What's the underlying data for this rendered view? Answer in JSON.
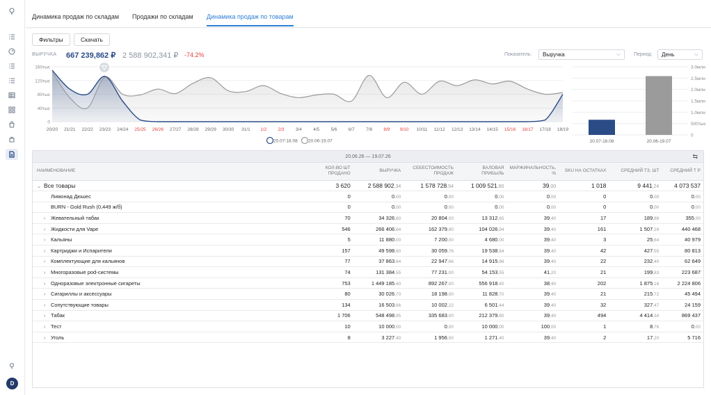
{
  "tabs": [
    {
      "label": "Динамика продаж по складам",
      "active": false
    },
    {
      "label": "Продажи по складам",
      "active": false
    },
    {
      "label": "Динамика продаж по товарам",
      "active": true
    }
  ],
  "toolbar": {
    "filters_label": "Фильтры",
    "download_label": "Скачать"
  },
  "kpi": {
    "label": "ВЫРУЧКА",
    "current": "667 239,862 ₽",
    "previous": "2 588 902,341 ₽",
    "delta": "-74.2%"
  },
  "selectors": {
    "indicator_label": "Показатель:",
    "indicator_value": "Выручка",
    "period_label": "Период:",
    "period_value": "День"
  },
  "legend": {
    "current": "20.07-18.08",
    "previous": "20.06-19.07"
  },
  "colors": {
    "current": "#2a4b86",
    "previous": "#9a9a9a",
    "weekend": "#e0403b",
    "accent": "#2f7fd6"
  },
  "chart_data": [
    {
      "type": "area",
      "y_ticks": [
        "160тыс",
        "120тыс",
        "80тыс",
        "40тыс",
        "0"
      ],
      "ylim": [
        0,
        160000
      ],
      "x": [
        "20/20",
        "21/21",
        "22/22",
        "23/23",
        "24/24",
        "25/25",
        "26/26",
        "27/27",
        "28/28",
        "29/29",
        "30/30",
        "31/1",
        "1/2",
        "2/3",
        "3/4",
        "4/5",
        "5/6",
        "6/7",
        "7/8",
        "8/9",
        "9/10",
        "10/11",
        "11/12",
        "12/13",
        "13/14",
        "14/15",
        "15/16",
        "16/17",
        "17/18",
        "18/19"
      ],
      "weekend_x": [
        "25/25",
        "26/26",
        "1/2",
        "2/3",
        "8/9",
        "9/10",
        "15/16",
        "16/17"
      ],
      "series": [
        {
          "name": "20.07-18.08",
          "values": [
            150000,
            95000,
            80000,
            132000,
            60000,
            5000,
            0,
            0,
            0,
            0,
            0,
            0,
            0,
            0,
            0,
            0,
            0,
            0,
            0,
            0,
            0,
            0,
            0,
            0,
            0,
            0,
            0,
            0,
            5000,
            80000
          ]
        },
        {
          "name": "20.06-19.07",
          "values": [
            145000,
            70000,
            40000,
            130000,
            80000,
            78000,
            95000,
            82000,
            112000,
            128000,
            90000,
            88000,
            105000,
            82000,
            70000,
            78000,
            80000,
            60000,
            135000,
            70000,
            115000,
            80000,
            118000,
            105000,
            122000,
            110000,
            118000,
            95000,
            80000,
            85000
          ]
        }
      ]
    },
    {
      "type": "bar",
      "y_ticks": [
        "3.0млн",
        "2.5млн",
        "2.0млн",
        "1.5млн",
        "1.0млн",
        "500тыс",
        "0"
      ],
      "ylim": [
        0,
        3000000
      ],
      "categories": [
        "20.07-18.08",
        "20.06-19.07"
      ],
      "values": [
        667239.862,
        2588902.341
      ]
    }
  ],
  "table": {
    "period": "20.06.26 — 19.07.26",
    "columns": [
      "НАИМЕНОВАНИЕ",
      "КОЛ-ВО ШТ ПРОДАНО",
      "ВЫРУЧКА",
      "СЕБЕСТОИМОСТЬ ПРОДАЖ",
      "ВАЛОВАЯ ПРИБЫЛЬ",
      "МАРЖИНАЛЬНОСТЬ, %",
      "SKU НА ОСТАТКАХ",
      "СРЕДНИЙ ТЗ, ШТ",
      "СРЕДНИЙ Т Р"
    ],
    "rows": [
      {
        "name": "Все товары",
        "level": 0,
        "caret": "⌄",
        "cells": [
          [
            "3 620",
            ""
          ],
          [
            "2 588 902",
            ",34"
          ],
          [
            "1 578 728",
            ",54"
          ],
          [
            "1 009 521",
            ",80"
          ],
          [
            "39",
            ",00"
          ],
          [
            "1 018",
            ""
          ],
          [
            "9 441",
            ",24"
          ],
          [
            "4 073 537",
            ""
          ]
        ]
      },
      {
        "name": "Лимонад Дюшес",
        "level": 2,
        "caret": "",
        "cells": [
          [
            "0",
            ""
          ],
          [
            "0",
            ",00"
          ],
          [
            "0",
            ",00"
          ],
          [
            "0",
            ",00"
          ],
          [
            "0",
            ",00"
          ],
          [
            "0",
            ""
          ],
          [
            "0",
            ",00"
          ],
          [
            "0",
            ",00"
          ]
        ]
      },
      {
        "name": "BURN - Gold Rush (0,449 ж/б)",
        "level": 2,
        "caret": "",
        "cells": [
          [
            "0",
            ""
          ],
          [
            "0",
            ",00"
          ],
          [
            "0",
            ",00"
          ],
          [
            "0",
            ",00"
          ],
          [
            "0",
            ",00"
          ],
          [
            "0",
            ""
          ],
          [
            "0",
            ",00"
          ],
          [
            "0",
            ",00"
          ]
        ]
      },
      {
        "name": "Жевательный табак",
        "level": 1,
        "caret": "›",
        "cells": [
          [
            "70",
            ""
          ],
          [
            "34 326",
            ",60"
          ],
          [
            "20 804",
            ",00"
          ],
          [
            "13 312",
            ",65"
          ],
          [
            "39",
            ",40"
          ],
          [
            "17",
            ""
          ],
          [
            "189",
            ",88"
          ],
          [
            "355",
            ",00"
          ]
        ]
      },
      {
        "name": "Жидкости для Vape",
        "level": 1,
        "caret": "›",
        "cells": [
          [
            "546",
            ""
          ],
          [
            "266 406",
            ",84"
          ],
          [
            "162 379",
            ",90"
          ],
          [
            "104 026",
            ",94"
          ],
          [
            "39",
            ",40"
          ],
          [
            "161",
            ""
          ],
          [
            "1 507",
            ",29"
          ],
          [
            "440 468",
            ""
          ]
        ]
      },
      {
        "name": "Кальяны",
        "level": 1,
        "caret": "›",
        "cells": [
          [
            "5",
            ""
          ],
          [
            "11 880",
            ",00"
          ],
          [
            "7 200",
            ",00"
          ],
          [
            "4 680",
            ",00"
          ],
          [
            "39",
            ",40"
          ],
          [
            "3",
            ""
          ],
          [
            "25",
            ",64"
          ],
          [
            "40 979",
            ""
          ]
        ]
      },
      {
        "name": "Картриджи и Испарители",
        "level": 1,
        "caret": "›",
        "cells": [
          [
            "157",
            ""
          ],
          [
            "49 598",
            ",60"
          ],
          [
            "30 059",
            ",76"
          ],
          [
            "19 538",
            ",84"
          ],
          [
            "39",
            ",40"
          ],
          [
            "42",
            ""
          ],
          [
            "427",
            ",55"
          ],
          [
            "80 813",
            ""
          ]
        ]
      },
      {
        "name": "Комплектующие для кальянов",
        "level": 1,
        "caret": "›",
        "cells": [
          [
            "77",
            ""
          ],
          [
            "37 863",
            ",64"
          ],
          [
            "22 947",
            ",66"
          ],
          [
            "14 915",
            ",98"
          ],
          [
            "39",
            ",40"
          ],
          [
            "22",
            ""
          ],
          [
            "232",
            ",40"
          ],
          [
            "62 649",
            ""
          ]
        ]
      },
      {
        "name": "Многоразовые pod-системы",
        "level": 1,
        "caret": "›",
        "cells": [
          [
            "74",
            ""
          ],
          [
            "131 384",
            ",55"
          ],
          [
            "77 231",
            ",00"
          ],
          [
            "54 153",
            ",55"
          ],
          [
            "41",
            ",20"
          ],
          [
            "21",
            ""
          ],
          [
            "199",
            ",83"
          ],
          [
            "223 687",
            ""
          ]
        ]
      },
      {
        "name": "Одноразовые электронные сигареты",
        "level": 1,
        "caret": "›",
        "cells": [
          [
            "753",
            ""
          ],
          [
            "1 449 185",
            ",40"
          ],
          [
            "892 267",
            ",00"
          ],
          [
            "556 918",
            ",40"
          ],
          [
            "38",
            ",40"
          ],
          [
            "202",
            ""
          ],
          [
            "1 875",
            ",16"
          ],
          [
            "2 224 806",
            ""
          ]
        ]
      },
      {
        "name": "Сигариллы и аксессуары",
        "level": 1,
        "caret": "›",
        "cells": [
          [
            "80",
            ""
          ],
          [
            "30 026",
            ",70"
          ],
          [
            "18 198",
            ",00"
          ],
          [
            "11 828",
            ",70"
          ],
          [
            "39",
            ",40"
          ],
          [
            "21",
            ""
          ],
          [
            "215",
            ",72"
          ],
          [
            "45 494",
            ""
          ]
        ]
      },
      {
        "name": "Сопутствующие товары",
        "level": 1,
        "caret": "›",
        "cells": [
          [
            "134",
            ""
          ],
          [
            "16 503",
            ",66"
          ],
          [
            "10 002",
            ",22"
          ],
          [
            "6 501",
            ",44"
          ],
          [
            "39",
            ",40"
          ],
          [
            "32",
            ""
          ],
          [
            "327",
            ",47"
          ],
          [
            "24 159",
            ""
          ]
        ]
      },
      {
        "name": "Табак",
        "level": 1,
        "caret": "›",
        "cells": [
          [
            "1 706",
            ""
          ],
          [
            "548 498",
            ",95"
          ],
          [
            "335 683",
            ",00"
          ],
          [
            "212 379",
            ",80"
          ],
          [
            "39",
            ",40"
          ],
          [
            "494",
            ""
          ],
          [
            "4 414",
            ",34"
          ],
          [
            "869 437",
            ""
          ]
        ]
      },
      {
        "name": "Тест",
        "level": 1,
        "caret": "›",
        "cells": [
          [
            "10",
            ""
          ],
          [
            "10 000",
            ",00"
          ],
          [
            "0",
            ",00"
          ],
          [
            "10 000",
            ",00"
          ],
          [
            "100",
            ",00"
          ],
          [
            "1",
            ""
          ],
          [
            "8",
            ",76"
          ],
          [
            "0",
            ",00"
          ]
        ]
      },
      {
        "name": "Уголь",
        "level": 1,
        "caret": "›",
        "cells": [
          [
            "8",
            ""
          ],
          [
            "3 227",
            ",40"
          ],
          [
            "1 956",
            ",00"
          ],
          [
            "1 271",
            ",40"
          ],
          [
            "39",
            ",40"
          ],
          [
            "2",
            ""
          ],
          [
            "17",
            ",20"
          ],
          [
            "5 716",
            ""
          ]
        ]
      }
    ]
  }
}
